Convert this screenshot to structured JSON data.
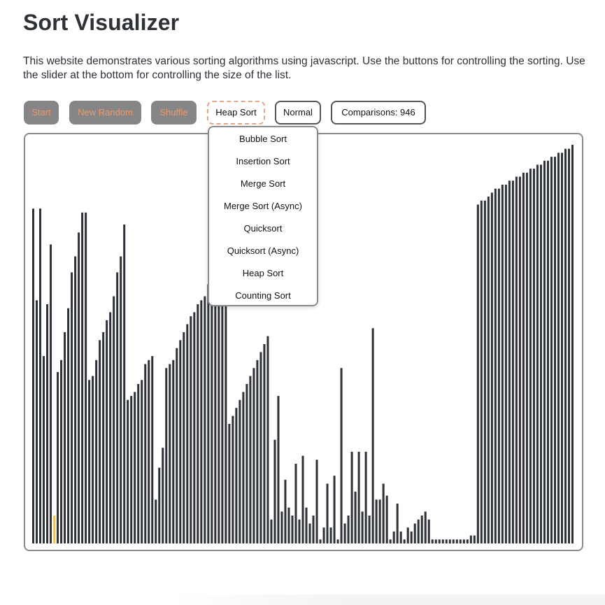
{
  "header": {
    "title": "Sort Visualizer",
    "description": "This website demonstrates various sorting algorithms using javascript. Use the buttons for controlling the sorting. Use the slider at the bottom for controlling the size of the list."
  },
  "toolbar": {
    "start_label": "Start",
    "new_random_label": "New Random",
    "shuffle_label": "Shuffle",
    "algorithm_selected": "Heap Sort",
    "speed_label": "Normal",
    "comparisons_label": "Comparisons: 946"
  },
  "algorithm_menu": {
    "items": [
      "Bubble Sort",
      "Insertion Sort",
      "Merge Sort",
      "Merge Sort (Async)",
      "Quicksort",
      "Quicksort (Async)",
      "Heap Sort",
      "Counting Sort"
    ]
  },
  "colors": {
    "bar": "#2e3138",
    "highlight": "#f2c15a",
    "button_bg": "#868686",
    "button_text": "#e99a6f",
    "dashed_border": "#e2a585"
  },
  "chart_data": {
    "type": "bar",
    "ylim": [
      0,
      100
    ],
    "highlight_index": 6,
    "values": [
      84,
      61,
      84,
      47,
      60,
      75,
      7,
      43,
      46,
      53,
      59,
      68,
      72,
      78,
      83,
      83,
      41,
      42,
      46,
      51,
      53,
      56,
      58,
      62,
      68,
      72,
      80,
      36,
      37,
      38,
      40,
      41,
      45,
      46,
      47,
      11,
      19,
      24,
      44,
      45,
      46,
      49,
      51,
      53,
      55,
      57,
      58,
      60,
      61,
      62,
      65,
      68,
      70,
      74,
      76,
      79,
      30,
      32,
      34,
      36,
      38,
      40,
      42,
      44,
      46,
      48,
      50,
      52,
      6,
      26,
      37,
      8,
      16,
      9,
      7,
      20,
      6,
      22,
      9,
      5,
      7,
      21,
      1,
      4,
      15,
      4,
      17,
      1,
      44,
      5,
      7,
      23,
      13,
      23,
      8,
      23,
      7,
      54,
      11,
      11,
      15,
      12,
      1,
      3,
      10,
      3,
      1,
      4,
      3,
      5,
      6,
      7,
      8,
      6,
      1,
      1,
      1,
      1,
      1,
      1,
      1,
      1,
      1,
      1,
      1,
      2,
      2,
      85,
      86,
      86,
      87,
      88,
      89,
      89,
      90,
      90,
      91,
      91,
      92,
      92,
      93,
      93,
      94,
      94,
      95,
      95,
      96,
      96,
      97,
      97,
      98,
      98,
      99,
      99,
      100
    ]
  }
}
